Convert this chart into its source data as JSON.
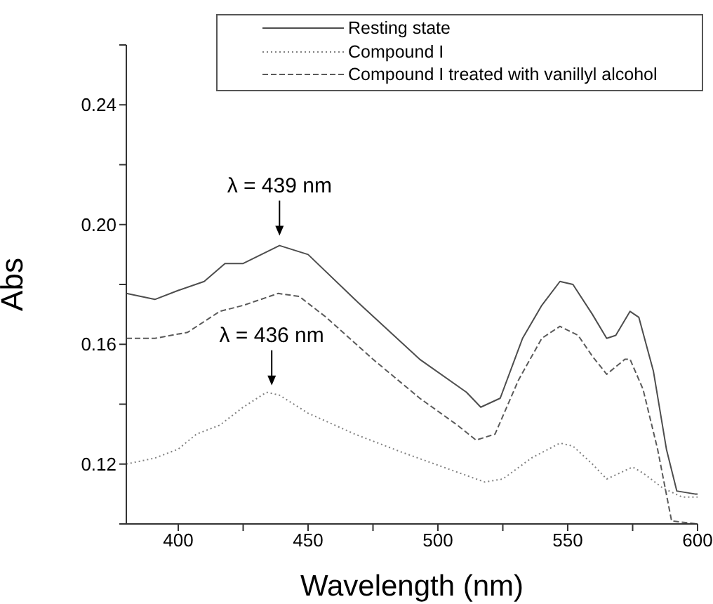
{
  "chart_data": {
    "type": "line",
    "xlabel": "Wavelength (nm)",
    "ylabel": "Abs",
    "xlim": [
      380,
      600
    ],
    "ylim": [
      0.1,
      0.26
    ],
    "xticks": [
      400,
      {
        "value": 425,
        "label": null
      },
      450,
      {
        "value": 475,
        "label": null
      },
      500,
      {
        "value": 525,
        "label": null
      },
      550,
      {
        "value": 575,
        "label": null
      },
      600
    ],
    "yticks": [
      {
        "value": 0.1,
        "label": null
      },
      0.12,
      {
        "value": 0.14,
        "label": null
      },
      0.16,
      {
        "value": 0.18,
        "label": null
      },
      {
        "value": 0.2,
        "label": "0.20"
      },
      {
        "value": 0.22,
        "label": null
      },
      0.24,
      {
        "value": 0.26,
        "label": null
      }
    ],
    "grid": false,
    "legend": "top right",
    "marker": "none",
    "annotations": [
      {
        "text": "λ = 439 nm",
        "x": 439,
        "y": 0.193
      },
      {
        "text": "λ = 436 nm",
        "x": 436,
        "y": 0.143
      }
    ],
    "series": [
      {
        "name": "Resting state",
        "color": "#4d4d4d",
        "line_style": "solid",
        "x": [
          380,
          391,
          400,
          410,
          418,
          425,
          439,
          450,
          468,
          493,
          511,
          516.5,
          524,
          532.6,
          540,
          547,
          552,
          559.5,
          565,
          568.5,
          574,
          577.4,
          583,
          588,
          592,
          599,
          600
        ],
        "values": [
          0.177,
          0.175,
          0.178,
          0.181,
          0.187,
          0.187,
          0.193,
          0.19,
          0.175,
          0.155,
          0.144,
          0.139,
          0.142,
          0.162,
          0.173,
          0.181,
          0.18,
          0.17,
          0.162,
          0.163,
          0.171,
          0.169,
          0.151,
          0.125,
          0.111,
          0.11,
          0.11
        ]
      },
      {
        "name": "Compound I",
        "color": "#808080",
        "line_style": "dotted",
        "x": [
          380,
          391,
          400,
          407,
          416,
          425,
          434,
          439,
          450,
          468,
          486,
          502,
          518,
          525,
          536,
          547,
          552,
          559.5,
          565,
          570,
          575,
          579,
          586.6,
          594,
          600
        ],
        "values": [
          0.12,
          0.122,
          0.125,
          0.13,
          0.133,
          0.139,
          0.144,
          0.143,
          0.137,
          0.13,
          0.124,
          0.119,
          0.114,
          0.115,
          0.122,
          0.127,
          0.126,
          0.12,
          0.115,
          0.117,
          0.119,
          0.117,
          0.112,
          0.109,
          0.109
        ]
      },
      {
        "name": "Compound I treated with vanillyl alcohol",
        "color": "#5a5a5a",
        "line_style": "dashed",
        "x": [
          380,
          391,
          403.6,
          416,
          425,
          438.5,
          446.6,
          457,
          475,
          493,
          507.5,
          514.7,
          522,
          531,
          540,
          547,
          554,
          559.5,
          565,
          572,
          574,
          579,
          584.6,
          590,
          600
        ],
        "values": [
          0.162,
          0.162,
          0.164,
          0.171,
          0.173,
          0.177,
          0.176,
          0.169,
          0.155,
          0.142,
          0.133,
          0.128,
          0.13,
          0.148,
          0.162,
          0.166,
          0.163,
          0.156,
          0.15,
          0.155,
          0.155,
          0.145,
          0.125,
          0.101,
          0.1
        ]
      }
    ]
  }
}
